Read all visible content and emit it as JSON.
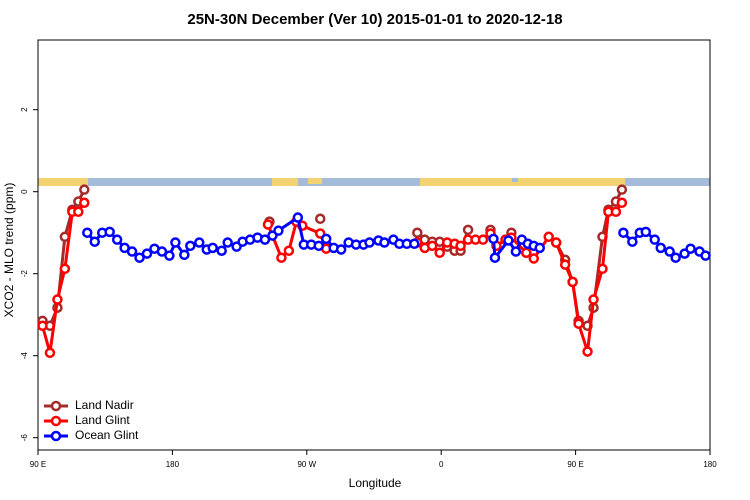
{
  "chart_data": {
    "type": "line",
    "title": "25N-30N December (Ver 10)   2015-01-01 to 2020-12-18",
    "x_label": "Longitude",
    "y_label": "XCO2 - MLO trend (ppm)",
    "xlim": [
      90,
      540
    ],
    "xticks": [
      {
        "value": 90,
        "label": "90 E"
      },
      180,
      {
        "value": 270,
        "label": "90 W"
      },
      {
        "value": 360,
        "label": "0"
      },
      {
        "value": 450,
        "label": "90 E"
      },
      {
        "value": 540,
        "label": "180"
      }
    ],
    "ylim": [
      -6.3,
      3.7
    ],
    "yticks": [
      -6,
      -4,
      -2,
      0,
      2
    ],
    "legend": "bottom-left",
    "series": [
      {
        "name": "Land Nadir",
        "color": "#a52a2a",
        "x": [
          93,
          98,
          103,
          108,
          113,
          117,
          121,
          null,
          245,
          null,
          279,
          null,
          344,
          349,
          354,
          359,
          364,
          369,
          373,
          378,
          null,
          393,
          null,
          407,
          null,
          417,
          null,
          437,
          443,
          448,
          452,
          458,
          462,
          468,
          472,
          477,
          481
        ],
        "values": [
          -3.15,
          -3.27,
          -2.83,
          -1.1,
          -0.44,
          -0.24,
          0.05,
          null,
          -0.73,
          null,
          -0.66,
          null,
          -1.0,
          -1.17,
          -1.22,
          -1.22,
          -1.34,
          -1.44,
          -1.44,
          -0.93,
          null,
          -0.93,
          null,
          -1.0,
          null,
          -1.49,
          null,
          -1.24,
          -1.66,
          -2.2,
          -3.15,
          -3.27,
          -2.83,
          -1.1,
          -0.44,
          -0.24,
          0.05
        ]
      },
      {
        "name": "Land Glint",
        "color": "#ff0000",
        "x": [
          93,
          98,
          103,
          108,
          113,
          117,
          121,
          null,
          244,
          253,
          258,
          263,
          267,
          279,
          283,
          null,
          344,
          349,
          354,
          359,
          364,
          369,
          373,
          378,
          383,
          388,
          393,
          397,
          403,
          407,
          417,
          422,
          432,
          437,
          443,
          448,
          452,
          458,
          462,
          468,
          472,
          477,
          481
        ],
        "values": [
          -3.27,
          -3.93,
          -2.63,
          -1.88,
          -0.49,
          -0.49,
          -0.27,
          null,
          -0.8,
          -1.61,
          -1.44,
          -0.73,
          -0.83,
          -1.02,
          -1.39,
          null,
          -1.24,
          -1.37,
          -1.32,
          -1.49,
          -1.24,
          -1.27,
          -1.32,
          -1.17,
          -1.17,
          -1.17,
          -1.02,
          -1.32,
          -1.17,
          -1.12,
          -1.49,
          -1.63,
          -1.1,
          -1.24,
          -1.78,
          -2.2,
          -3.22,
          -3.9,
          -2.63,
          -1.88,
          -0.49,
          -0.49,
          -0.27
        ]
      },
      {
        "name": "Ocean Glint",
        "color": "#0000ff",
        "x": [
          123,
          128,
          133,
          138,
          143,
          148,
          153,
          158,
          163,
          168,
          173,
          178,
          182,
          188,
          192,
          198,
          203,
          207,
          213,
          217,
          223,
          227,
          232,
          237,
          242,
          247,
          251,
          264,
          268,
          273,
          278,
          283,
          288,
          293,
          298,
          303,
          308,
          312,
          318,
          322,
          328,
          332,
          337,
          342,
          null,
          395,
          396,
          405,
          410,
          414,
          418,
          422,
          426,
          null,
          482,
          488,
          493,
          497,
          503,
          507,
          513,
          517,
          523,
          527,
          533,
          537
        ],
        "values": [
          -1.0,
          -1.22,
          -1.0,
          -0.98,
          -1.17,
          -1.37,
          -1.46,
          -1.61,
          -1.51,
          -1.39,
          -1.46,
          -1.56,
          -1.24,
          -1.54,
          -1.32,
          -1.24,
          -1.41,
          -1.37,
          -1.44,
          -1.24,
          -1.34,
          -1.22,
          -1.17,
          -1.12,
          -1.17,
          -1.07,
          -0.95,
          -0.63,
          -1.29,
          -1.29,
          -1.32,
          -1.15,
          -1.37,
          -1.41,
          -1.24,
          -1.29,
          -1.29,
          -1.24,
          -1.19,
          -1.24,
          -1.17,
          -1.27,
          -1.27,
          -1.27,
          null,
          -1.15,
          -1.61,
          -1.19,
          -1.46,
          -1.17,
          -1.27,
          -1.32,
          -1.37,
          null,
          -1.0,
          -1.22,
          -1.0,
          -0.98,
          -1.17,
          -1.37,
          -1.46,
          -1.61,
          -1.51,
          -1.39,
          -1.46,
          -1.56
        ]
      }
    ]
  }
}
